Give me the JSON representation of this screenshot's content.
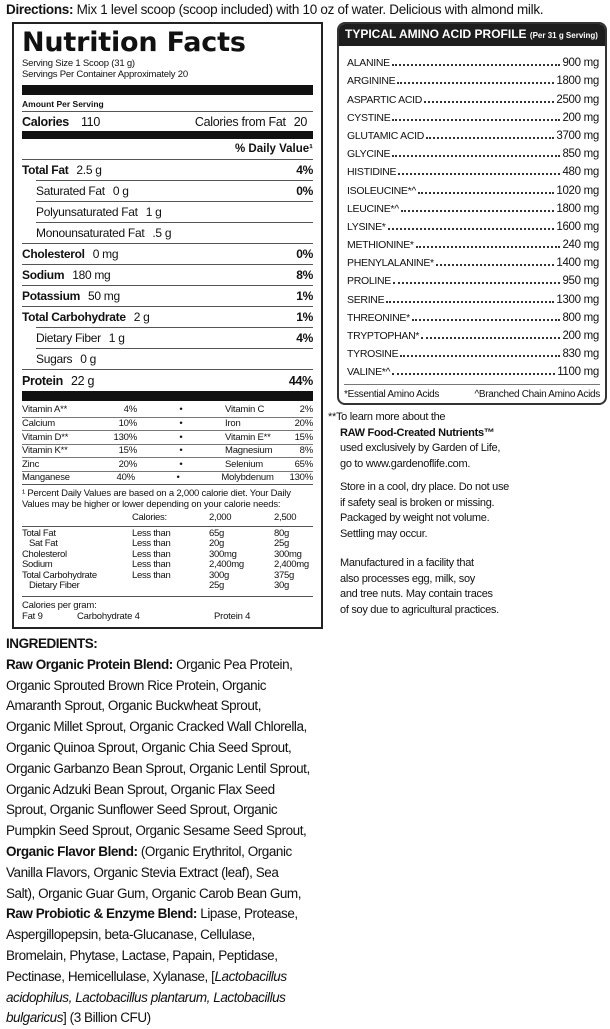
{
  "directions": {
    "label": "Directions:",
    "text": " Mix 1 level scoop (scoop included) with 10 oz of water. Delicious with almond milk."
  },
  "nutrition": {
    "title": "Nutrition Facts",
    "serving_size": "Serving Size 1 Scoop (31 g)",
    "servings_per_container": "Servings Per Container Approximately 20",
    "amount_per_serving": "Amount Per Serving",
    "calories_label": "Calories",
    "calories": "110",
    "calories_from_fat_label": "Calories from Fat",
    "calories_from_fat": "20",
    "dv_header": "% Daily Value¹",
    "rows": [
      {
        "label": "Total Fat",
        "amount": "2.5 g",
        "pct": "4%",
        "bold": true,
        "indent": false
      },
      {
        "label": "Saturated Fat",
        "amount": "0 g",
        "pct": "0%",
        "bold": false,
        "indent": true
      },
      {
        "label": "Polyunsaturated Fat",
        "amount": "1 g",
        "pct": "",
        "bold": false,
        "indent": true
      },
      {
        "label": "Monounsaturated Fat",
        "amount": ".5 g",
        "pct": "",
        "bold": false,
        "indent": true
      },
      {
        "label": "Cholesterol",
        "amount": "0 mg",
        "pct": "0%",
        "bold": true,
        "indent": false
      },
      {
        "label": "Sodium",
        "amount": "180 mg",
        "pct": "8%",
        "bold": true,
        "indent": false
      },
      {
        "label": "Potassium",
        "amount": "50 mg",
        "pct": "1%",
        "bold": true,
        "indent": false
      },
      {
        "label": "Total Carbohydrate",
        "amount": "2 g",
        "pct": "1%",
        "bold": true,
        "indent": false
      },
      {
        "label": "Dietary Fiber",
        "amount": "1 g",
        "pct": "4%",
        "bold": false,
        "indent": true
      },
      {
        "label": "Sugars",
        "amount": "0 g",
        "pct": "",
        "bold": false,
        "indent": true
      },
      {
        "label": "Protein",
        "amount": "22 g",
        "pct": "44%",
        "bold": true,
        "indent": false
      }
    ],
    "vitamins": [
      [
        "Vitamin A**",
        "4%",
        "Vitamin C",
        "2%"
      ],
      [
        "Calcium",
        "10%",
        "Iron",
        "20%"
      ],
      [
        "Vitamin D**",
        "130%",
        "Vitamin E**",
        "15%"
      ],
      [
        "Vitamin K**",
        "15%",
        "Magnesium",
        "8%"
      ],
      [
        "Zinc",
        "20%",
        "Selenium",
        "65%"
      ],
      [
        "Manganese",
        "40%",
        "Molybdenum",
        "130%"
      ]
    ],
    "footnote": "¹ Percent Daily Values are based on a 2,000 calorie diet. Your Daily Values may be higher or lower depending on your calorie needs:",
    "dv_table": {
      "header": [
        "",
        "Calories:",
        "2,000",
        "2,500"
      ],
      "rows": [
        [
          "Total Fat",
          "Less than",
          "65g",
          "80g"
        ],
        [
          "   Sat Fat",
          "Less than",
          "20g",
          "25g"
        ],
        [
          "Cholesterol",
          "Less than",
          "300mg",
          "300mg"
        ],
        [
          "Sodium",
          "Less than",
          "2,400mg",
          "2,400mg"
        ],
        [
          "Total Carbohydrate",
          "Less than",
          "300g",
          "375g"
        ],
        [
          "   Dietary Fiber",
          "",
          "25g",
          "30g"
        ]
      ]
    },
    "calories_per_gram": {
      "label": "Calories per gram:",
      "fat": "Fat 9",
      "carb": "Carbohydrate 4",
      "protein": "Protein 4"
    }
  },
  "amino": {
    "title": "TYPICAL AMINO ACID PROFILE",
    "subtitle": "(Per 31 g Serving)",
    "items": [
      [
        "ALANINE",
        "900 mg"
      ],
      [
        "ARGININE",
        "1800 mg"
      ],
      [
        "ASPARTIC ACID",
        "2500 mg"
      ],
      [
        "CYSTINE",
        "200 mg"
      ],
      [
        "GLUTAMIC ACID",
        "3700 mg"
      ],
      [
        "GLYCINE",
        "850 mg"
      ],
      [
        "HISTIDINE",
        "480 mg"
      ],
      [
        "ISOLEUCINE*^",
        "1020 mg"
      ],
      [
        "LEUCINE*^",
        "1800 mg"
      ],
      [
        "LYSINE*",
        "1600 mg"
      ],
      [
        "METHIONINE*",
        "240 mg"
      ],
      [
        "PHENYLALANINE*",
        "1400 mg"
      ],
      [
        "PROLINE",
        "950 mg"
      ],
      [
        "SERINE",
        "1300 mg"
      ],
      [
        "THREONINE*",
        "800 mg"
      ],
      [
        "TRYPTOPHAN*",
        "200 mg"
      ],
      [
        "TYROSINE",
        "830 mg"
      ],
      [
        "VALINE*^",
        "1100 mg"
      ]
    ],
    "footnote_essential": "*Essential Amino Acids",
    "footnote_bcaa": "^Branched Chain Amino Acids"
  },
  "info": {
    "l1": "**To learn more about the",
    "l2": "RAW Food-Created Nutrients™",
    "l3": "used exclusively by Garden of Life,",
    "l4": "go to www.gardenoflife.com.",
    "store": [
      "Store in a cool, dry place. Do not use",
      "if safety seal is broken or missing.",
      "Packaged by weight not volume.",
      "Settling may occur."
    ],
    "facility": [
      "Manufactured in a facility that",
      "also processes egg, milk, soy",
      "and tree nuts. May contain traces",
      "of soy due to agricultural practices."
    ]
  },
  "ingredients": {
    "lines": [
      [
        [
          "INGREDIENTS:",
          "b"
        ]
      ],
      [
        [
          "Raw Organic Protein Blend:",
          "b"
        ],
        [
          " Organic Pea Protein,",
          ""
        ]
      ],
      [
        [
          "Organic Sprouted Brown Rice Protein, Organic",
          ""
        ]
      ],
      [
        [
          "Amaranth Sprout, Organic Buckwheat Sprout,",
          ""
        ]
      ],
      [
        [
          "Organic Millet Sprout, Organic Cracked Wall Chlorella,",
          ""
        ]
      ],
      [
        [
          "Organic Quinoa Sprout, Organic Chia Seed Sprout,",
          ""
        ]
      ],
      [
        [
          "Organic Garbanzo Bean Sprout, Organic Lentil Sprout,",
          ""
        ]
      ],
      [
        [
          "Organic Adzuki Bean Sprout, Organic Flax Seed",
          ""
        ]
      ],
      [
        [
          "Sprout, Organic Sunflower Seed Sprout, Organic",
          ""
        ]
      ],
      [
        [
          "Pumpkin Seed Sprout, Organic Sesame Seed Sprout,",
          ""
        ]
      ],
      [
        [
          "Organic Flavor Blend:",
          "b"
        ],
        [
          " (Organic Erythritol, Organic",
          ""
        ]
      ],
      [
        [
          "Vanilla Flavors, Organic Stevia Extract (leaf), Sea",
          ""
        ]
      ],
      [
        [
          "Salt), Organic Guar Gum, Organic Carob Bean Gum,",
          ""
        ]
      ],
      [
        [
          "Raw Probiotic & Enzyme Blend:",
          "b"
        ],
        [
          " Lipase, Protease,",
          ""
        ]
      ],
      [
        [
          "Aspergillopepsin, beta-Glucanase, Cellulase,",
          ""
        ]
      ],
      [
        [
          "Bromelain, Phytase, Lactase, Papain, Peptidase,",
          ""
        ]
      ],
      [
        [
          "Pectinase, Hemicellulase, Xylanase, [",
          ""
        ],
        [
          "Lactobacillus",
          "i"
        ]
      ],
      [
        [
          "acidophilus, Lactobacillus plantarum, Lactobacillus",
          "i"
        ]
      ],
      [
        [
          "bulgaricus",
          "i"
        ],
        [
          "] (3 Billion CFU)",
          ""
        ]
      ]
    ]
  }
}
